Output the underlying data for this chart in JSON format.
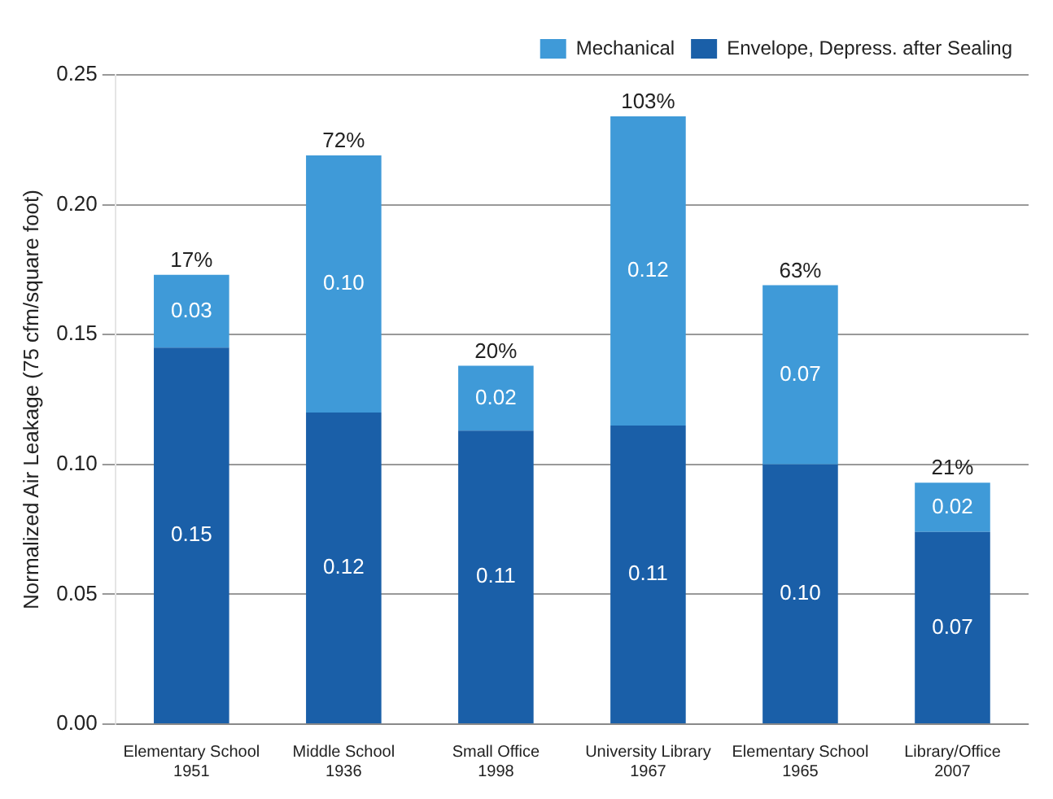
{
  "chart_data": {
    "type": "bar",
    "stacked": true,
    "ylabel": "Normalized Air Leakage (75 cfm/square foot)",
    "categories": [
      "Elementary School\n1951",
      "Middle School\n1936",
      "Small Office\n1998",
      "University Library\n1967",
      "Elementary School\n1965",
      "Library/Office\n2007"
    ],
    "series": [
      {
        "name": "Envelope, Depress. after Sealing",
        "color": "#1a5fa8",
        "values": [
          0.145,
          0.12,
          0.113,
          0.115,
          0.1,
          0.074
        ],
        "value_labels": [
          "0.15",
          "0.12",
          "0.11",
          "0.11",
          "0.10",
          "0.07"
        ]
      },
      {
        "name": "Mechanical",
        "color": "#3f9ad8",
        "values": [
          0.028,
          0.099,
          0.025,
          0.119,
          0.069,
          0.019
        ],
        "value_labels": [
          "0.03",
          "0.10",
          "0.02",
          "0.12",
          "0.07",
          "0.02"
        ]
      }
    ],
    "annotations": [
      {
        "text": "17%",
        "x": "Elementary School\n1951",
        "y": 0.173
      },
      {
        "text": "72%",
        "x": "Middle School\n1936",
        "y": 0.219
      },
      {
        "text": "20%",
        "x": "Small Office\n1998",
        "y": 0.138
      },
      {
        "text": "103%",
        "x": "University Library\n1967",
        "y": 0.234
      },
      {
        "text": "63%",
        "x": "Elementary School\n1965",
        "y": 0.169
      },
      {
        "text": "21%",
        "x": "Library/Office\n2007",
        "y": 0.093
      }
    ],
    "ylim": [
      0,
      0.25
    ],
    "yticks": [
      {
        "value": 0,
        "label": "0.00"
      },
      {
        "value": 0.05,
        "label": "0.05"
      },
      {
        "value": 0.1,
        "label": "0.10"
      },
      {
        "value": 0.15,
        "label": "0.15"
      },
      {
        "value": 0.2,
        "label": "0.20"
      },
      {
        "value": 0.25,
        "label": "0.25"
      }
    ],
    "grid": "y",
    "legend": "top right"
  }
}
